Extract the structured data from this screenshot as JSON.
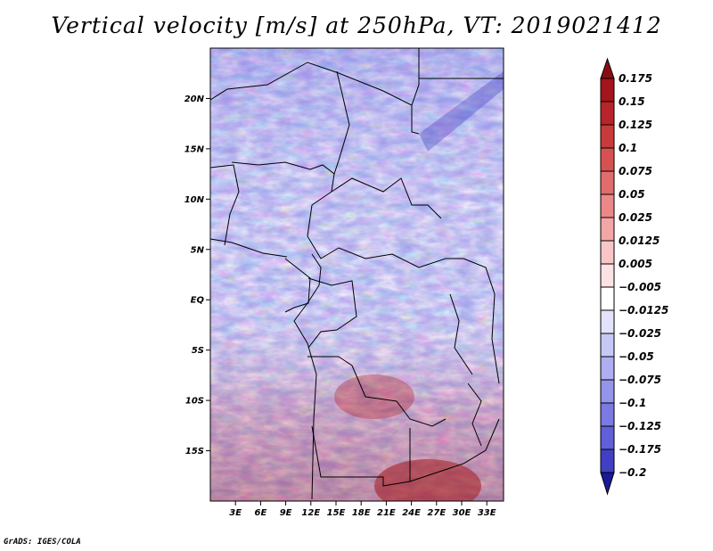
{
  "title": "Vertical velocity [m/s] at 250hPa, VT: 2019021412",
  "footer": "GrADS: IGES/COLA",
  "map": {
    "lat_range": [
      -20,
      25
    ],
    "lon_range": [
      0,
      35
    ],
    "lat_ticks": [
      {
        "value": 20,
        "label": "20N"
      },
      {
        "value": 15,
        "label": "15N"
      },
      {
        "value": 10,
        "label": "10N"
      },
      {
        "value": 5,
        "label": "5N"
      },
      {
        "value": 0,
        "label": "EQ"
      },
      {
        "value": -5,
        "label": "5S"
      },
      {
        "value": -10,
        "label": "10S"
      },
      {
        "value": -15,
        "label": "15S"
      }
    ],
    "lon_ticks": [
      {
        "value": 3,
        "label": "3E"
      },
      {
        "value": 6,
        "label": "6E"
      },
      {
        "value": 9,
        "label": "9E"
      },
      {
        "value": 12,
        "label": "12E"
      },
      {
        "value": 15,
        "label": "15E"
      },
      {
        "value": 18,
        "label": "18E"
      },
      {
        "value": 21,
        "label": "21E"
      },
      {
        "value": 24,
        "label": "24E"
      },
      {
        "value": 27,
        "label": "27E"
      },
      {
        "value": 30,
        "label": "30E"
      },
      {
        "value": 33,
        "label": "33E"
      }
    ]
  },
  "colorbar": {
    "levels": [
      {
        "label": "0.175",
        "color": "#a4141d"
      },
      {
        "label": "0.15",
        "color": "#b8242a"
      },
      {
        "label": "0.125",
        "color": "#c83b3b"
      },
      {
        "label": "0.1",
        "color": "#d65252"
      },
      {
        "label": "0.075",
        "color": "#e26c6c"
      },
      {
        "label": "0.05",
        "color": "#ec8888"
      },
      {
        "label": "0.025",
        "color": "#f3a6a6"
      },
      {
        "label": "0.0125",
        "color": "#f8c6c6"
      },
      {
        "label": "0.005",
        "color": "#fce2e2"
      },
      {
        "label": "−0.005",
        "color": "#ffffff"
      },
      {
        "label": "−0.0125",
        "color": "#e2e2fb"
      },
      {
        "label": "−0.025",
        "color": "#c8c8f7"
      },
      {
        "label": "−0.05",
        "color": "#aeaef1"
      },
      {
        "label": "−0.075",
        "color": "#9494ea"
      },
      {
        "label": "−0.1",
        "color": "#7a7ae2"
      },
      {
        "label": "−0.125",
        "color": "#6060d8"
      },
      {
        "label": "−0.175",
        "color": "#4040c4"
      },
      {
        "label": "−0.2",
        "color": "#2424a8"
      }
    ],
    "top_triangle_color": "#8b0d14",
    "bottom_triangle_color": "#1a1a96"
  }
}
